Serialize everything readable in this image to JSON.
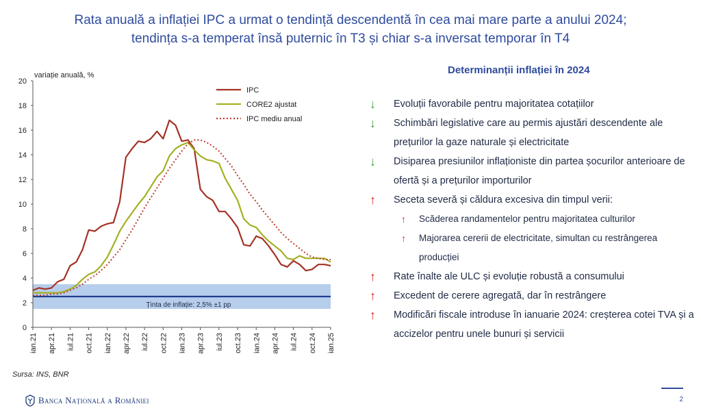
{
  "title": {
    "line1": "Rata anuală a inflației IPC a urmat o tendință descendentă în cea mai mare parte a anului 2024;",
    "line2": "tendința s-a temperat însă puternic în T3 și chiar s-a inversat temporar în T4"
  },
  "chart_data": {
    "type": "line",
    "ylabel": "variație anuală, %",
    "ylim": [
      0,
      20
    ],
    "y_ticks": [
      0,
      2,
      4,
      6,
      8,
      10,
      12,
      14,
      16,
      18,
      20
    ],
    "x_tick_labels": [
      "ian.21",
      "apr.21",
      "iul.21",
      "oct.21",
      "ian.22",
      "apr.22",
      "iul.22",
      "oct.22",
      "ian.23",
      "apr.23",
      "iul.23",
      "oct.23",
      "ian.24",
      "apr.24",
      "iul.24",
      "oct.24",
      "ian.25"
    ],
    "target_band": {
      "center": 2.5,
      "low": 1.5,
      "high": 3.5,
      "label": "Ținta de inflație: 2,5% ±1 pp"
    },
    "legend_position": "top-right",
    "series": [
      {
        "name": "IPC",
        "color": "#a33224",
        "style": "solid",
        "values": [
          3.0,
          3.2,
          3.1,
          3.2,
          3.7,
          3.9,
          5.0,
          5.3,
          6.3,
          7.9,
          7.8,
          8.2,
          8.4,
          8.5,
          10.2,
          13.8,
          14.5,
          15.1,
          15.0,
          15.3,
          15.9,
          15.3,
          16.8,
          16.4,
          15.1,
          15.2,
          14.5,
          11.2,
          10.6,
          10.3,
          9.4,
          9.4,
          8.8,
          8.1,
          6.7,
          6.6,
          7.4,
          7.2,
          6.6,
          5.9,
          5.1,
          4.9,
          5.4,
          5.1,
          4.6,
          4.7,
          5.1,
          5.1,
          5.0
        ]
      },
      {
        "name": "CORE2 ajustat",
        "color": "#a3b020",
        "style": "solid",
        "values": [
          2.8,
          2.8,
          2.8,
          2.8,
          2.8,
          2.9,
          3.1,
          3.4,
          3.9,
          4.3,
          4.5,
          5.0,
          5.7,
          6.7,
          7.8,
          8.6,
          9.3,
          10.0,
          10.6,
          11.4,
          12.2,
          12.7,
          13.9,
          14.5,
          14.8,
          15.0,
          14.4,
          13.9,
          13.6,
          13.5,
          13.3,
          12.1,
          11.2,
          10.3,
          8.8,
          8.3,
          8.1,
          7.5,
          7.0,
          6.6,
          6.2,
          5.6,
          5.5,
          5.8,
          5.6,
          5.6,
          5.6,
          5.6,
          5.3
        ]
      },
      {
        "name": "IPC mediu anual",
        "color": "#c0392b",
        "style": "dotted",
        "values": [
          2.6,
          2.6,
          2.6,
          2.7,
          2.7,
          2.8,
          3.0,
          3.2,
          3.5,
          3.9,
          4.2,
          4.6,
          5.1,
          5.7,
          6.3,
          7.1,
          7.9,
          8.8,
          9.7,
          10.5,
          11.3,
          12.1,
          12.9,
          13.6,
          14.3,
          14.9,
          15.2,
          15.2,
          15.0,
          14.7,
          14.3,
          13.7,
          13.1,
          12.3,
          11.6,
          10.8,
          10.2,
          9.5,
          8.9,
          8.3,
          7.7,
          7.2,
          6.8,
          6.4,
          6.0,
          5.7,
          5.6,
          5.5,
          5.5
        ]
      }
    ]
  },
  "source": "Sursa: INS, BNR",
  "determinants": {
    "title": "Determinanții inflației în 2024",
    "items": [
      {
        "dir": "down",
        "level": 0,
        "text": "Evoluții favorabile pentru majoritatea cotațiilor"
      },
      {
        "dir": "down",
        "level": 0,
        "text": "Schimbări legislative care au permis ajustări descendente ale prețurilor la gaze naturale și electricitate"
      },
      {
        "dir": "down",
        "level": 0,
        "text": "Disiparea presiunilor inflaționiste din partea șocurilor anterioare de ofertă și a prețurilor importurilor"
      },
      {
        "dir": "up",
        "level": 0,
        "text": "Seceta severă și căldura excesiva din timpul verii:"
      },
      {
        "dir": "up",
        "level": 1,
        "text": "Scăderea randamentelor pentru majoritatea culturilor"
      },
      {
        "dir": "up",
        "level": 1,
        "text": "Majorarea cererii de electricitate, simultan cu restrângerea producției"
      },
      {
        "dir": "up",
        "level": 0,
        "text": "Rate înalte ale ULC și evoluție robustă a consumului"
      },
      {
        "dir": "up",
        "level": 0,
        "text": "Excedent de cerere agregată, dar în restrângere"
      },
      {
        "dir": "up",
        "level": 0,
        "text": "Modificări fiscale introduse în ianuarie 2024: creșterea cotei TVA și a accizelor pentru unele bunuri și servicii"
      }
    ]
  },
  "footer": {
    "logo_text": "Banca Națională a României",
    "page_number": "2"
  },
  "colors": {
    "accent": "#2f4b9e",
    "down_arrow": "#3a9d3a",
    "up_arrow": "#e02020",
    "band": "#a9c6e8",
    "target_line": "#1f3c8f"
  }
}
